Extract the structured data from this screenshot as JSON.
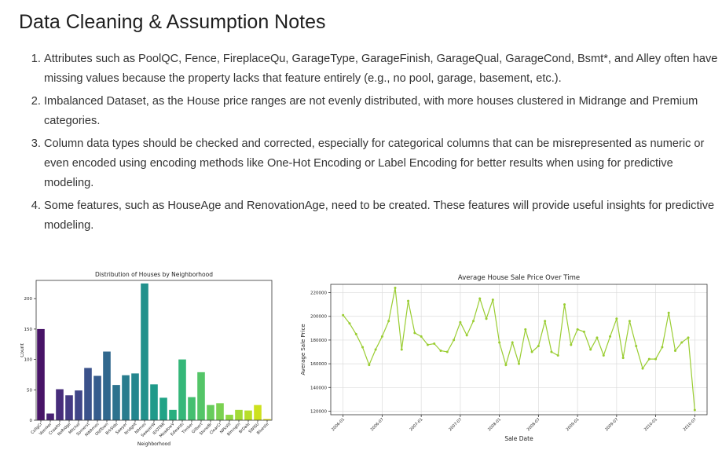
{
  "page": {
    "title": "Data Cleaning & Assumption Notes",
    "notes": [
      "Attributes such as PoolQC, Fence, FireplaceQu, GarageType, GarageFinish, GarageQual, GarageCond, Bsmt*, and Alley often have missing values because the property lacks that feature entirely (e.g., no pool, garage, basement, etc.).",
      "Imbalanced Dataset, as the House price ranges are not evenly distributed, with more houses clustered in Midrange and Premium categories.",
      "Column data types should be checked and corrected, especially for categorical columns that can be misrepresented as numeric or even encoded using encoding methods like One-Hot Encoding or Label Encoding for better results when using for predictive modeling.",
      "Some features, such as HouseAge and RenovationAge, need to be created. These features will provide useful insights for predictive modeling."
    ]
  },
  "chart_data": [
    {
      "type": "bar",
      "title": "Distribution of Houses by Neighborhood",
      "xlabel": "Neighborhood",
      "ylabel": "Count",
      "ylim": [
        0,
        230
      ],
      "yticks": [
        0,
        50,
        100,
        150,
        200
      ],
      "grid": false,
      "categories": [
        "CollgCr",
        "Veenker",
        "Crawfor",
        "NoRidge",
        "Mitchel",
        "Somerst",
        "NWAmes",
        "OldTown",
        "BrkSide",
        "Sawyer",
        "NridgHt",
        "NAmes",
        "SawyerW",
        "IDOTRR",
        "MeadowV",
        "Edwards",
        "Timber",
        "Gilbert",
        "StoneBr",
        "ClearCr",
        "NPkVill",
        "Blmngtn",
        "BrDale",
        "SWISU",
        "Blueste"
      ],
      "values": [
        150,
        11,
        51,
        41,
        49,
        86,
        73,
        113,
        58,
        74,
        77,
        225,
        59,
        37,
        17,
        100,
        38,
        79,
        25,
        28,
        9,
        17,
        16,
        25,
        2
      ],
      "colors": [
        "#481467",
        "#482173",
        "#472d7b",
        "#443a83",
        "#404688",
        "#3b528b",
        "#365c8d",
        "#31688e",
        "#2c728e",
        "#287c8e",
        "#24868e",
        "#21918c",
        "#1f9a8a",
        "#20a386",
        "#29af7f",
        "#35b779",
        "#44bf70",
        "#54c568",
        "#67cc5c",
        "#7ad151",
        "#8fd744",
        "#a2da37",
        "#b8de29",
        "#cde11d",
        "#e2e418"
      ]
    },
    {
      "type": "line",
      "title": "Average House Sale Price Over Time",
      "xlabel": "Sale Date",
      "ylabel": "Average Sale Price",
      "ylim": [
        117000,
        227000
      ],
      "yticks": [
        120000,
        140000,
        160000,
        180000,
        200000,
        220000
      ],
      "xticks": [
        "2006-01",
        "2006-07",
        "2007-01",
        "2007-07",
        "2008-01",
        "2008-07",
        "2009-01",
        "2009-07",
        "2010-01",
        "2010-07"
      ],
      "grid": true,
      "color": "#9acd32",
      "x": [
        "2006-01",
        "2006-02",
        "2006-03",
        "2006-04",
        "2006-05",
        "2006-06",
        "2006-07",
        "2006-08",
        "2006-09",
        "2006-10",
        "2006-11",
        "2006-12",
        "2007-01",
        "2007-02",
        "2007-03",
        "2007-04",
        "2007-05",
        "2007-06",
        "2007-07",
        "2007-08",
        "2007-09",
        "2007-10",
        "2007-11",
        "2007-12",
        "2008-01",
        "2008-02",
        "2008-03",
        "2008-04",
        "2008-05",
        "2008-06",
        "2008-07",
        "2008-08",
        "2008-09",
        "2008-10",
        "2008-11",
        "2008-12",
        "2009-01",
        "2009-02",
        "2009-03",
        "2009-04",
        "2009-05",
        "2009-06",
        "2009-07",
        "2009-08",
        "2009-09",
        "2009-10",
        "2009-11",
        "2009-12",
        "2010-01",
        "2010-02",
        "2010-03",
        "2010-04",
        "2010-05",
        "2010-06",
        "2010-07"
      ],
      "values": [
        201000,
        194000,
        185000,
        174000,
        159000,
        172000,
        183000,
        196000,
        224000,
        172000,
        213000,
        186000,
        183000,
        176000,
        177000,
        171000,
        170000,
        180000,
        195000,
        184000,
        196000,
        215000,
        198000,
        214000,
        178000,
        159000,
        178000,
        160000,
        189000,
        170000,
        175000,
        196000,
        170000,
        167000,
        210000,
        176000,
        189000,
        187000,
        172000,
        182000,
        167000,
        183000,
        198000,
        165000,
        196000,
        175000,
        156000,
        164000,
        164000,
        174000,
        203000,
        171000,
        178000,
        182000,
        121000
      ]
    }
  ]
}
